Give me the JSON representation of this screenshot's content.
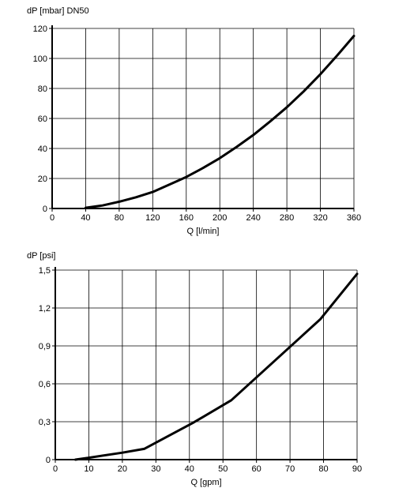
{
  "chart_data": [
    {
      "type": "line",
      "ylabel": "dP [mbar] DN50",
      "xlabel": "Q [l/min]",
      "xlim": [
        0,
        360
      ],
      "ylim": [
        0,
        120
      ],
      "xticks": [
        0,
        40,
        80,
        120,
        160,
        200,
        240,
        280,
        320,
        360
      ],
      "yticks": [
        0,
        20,
        40,
        60,
        80,
        100,
        120
      ],
      "xtick_labels": [
        "0",
        "40",
        "80",
        "120",
        "160",
        "200",
        "240",
        "280",
        "320",
        "360"
      ],
      "ytick_labels": [
        "0",
        "20",
        "40",
        "60",
        "80",
        "100",
        "120"
      ],
      "grid": true,
      "x": [
        40,
        60,
        80,
        100,
        120,
        140,
        160,
        180,
        200,
        220,
        240,
        260,
        280,
        300,
        320,
        340,
        360
      ],
      "y": [
        0.5,
        2,
        4.5,
        7.5,
        11,
        16,
        21,
        27,
        33.5,
        41,
        49,
        58,
        67.5,
        78,
        89.5,
        102,
        115
      ],
      "line_color": "#000000"
    },
    {
      "type": "line",
      "ylabel": "dP [psi]",
      "xlabel": "Q [gpm]",
      "xlim": [
        0,
        90
      ],
      "ylim": [
        0,
        1.5
      ],
      "xticks": [
        0,
        10,
        20,
        30,
        40,
        50,
        60,
        70,
        80,
        90
      ],
      "yticks": [
        0,
        0.3,
        0.6,
        0.9,
        1.2,
        1.5
      ],
      "xtick_labels": [
        "0",
        "10",
        "20",
        "30",
        "40",
        "50",
        "60",
        "70",
        "80",
        "90"
      ],
      "ytick_labels": [
        "0",
        "0,3",
        "0,6",
        "0,9",
        "1,2",
        "1,5"
      ],
      "grid": true,
      "x": [
        6,
        10,
        20,
        26.5,
        41,
        52.5,
        79,
        90
      ],
      "y": [
        0,
        0.015,
        0.055,
        0.085,
        0.29,
        0.47,
        1.11,
        1.47
      ],
      "line_color": "#000000"
    }
  ]
}
